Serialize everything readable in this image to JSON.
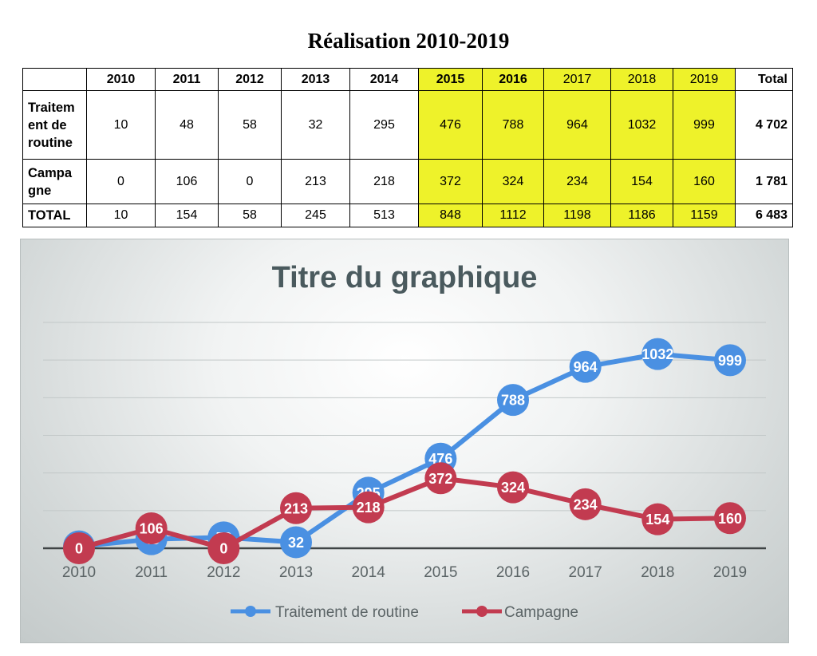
{
  "table": {
    "title": "Réalisation 2010-2019",
    "header": [
      "",
      "2010",
      "2011",
      "2012",
      "2013",
      "2014",
      "2015",
      "2016",
      "2017",
      "2018",
      "2019",
      "Total"
    ],
    "rows": [
      {
        "label_lines": [
          "Traitem",
          "ent de",
          "routine"
        ],
        "values": [
          "10",
          "48",
          "58",
          "32",
          "295",
          "476",
          "788",
          "964",
          "1032",
          "999"
        ],
        "total": "4 702"
      },
      {
        "label_lines": [
          "Campa",
          "gne"
        ],
        "values": [
          "0",
          "106",
          "0",
          "213",
          "218",
          "372",
          "324",
          "234",
          "154",
          "160"
        ],
        "total": "1 781"
      },
      {
        "label_lines": [
          "TOTAL"
        ],
        "values": [
          "10",
          "154",
          "58",
          "245",
          "513",
          "848",
          "1112",
          "1198",
          "1186",
          "1159"
        ],
        "total": "6 483"
      }
    ],
    "highlight_color": "#eef22a"
  },
  "chart_data": {
    "type": "line",
    "title": "Titre du graphique",
    "categories": [
      "2010",
      "2011",
      "2012",
      "2013",
      "2014",
      "2015",
      "2016",
      "2017",
      "2018",
      "2019"
    ],
    "series": [
      {
        "name": "Traitement de routine",
        "color": "#4a90e2",
        "values": [
          10,
          48,
          58,
          32,
          295,
          476,
          788,
          964,
          1032,
          999
        ]
      },
      {
        "name": "Campagne",
        "color": "#c23b50",
        "values": [
          0,
          106,
          0,
          213,
          218,
          372,
          324,
          234,
          154,
          160
        ]
      }
    ],
    "ylim": [
      0,
      1200
    ],
    "grid": true,
    "data_labels": true,
    "legend_position": "bottom"
  }
}
